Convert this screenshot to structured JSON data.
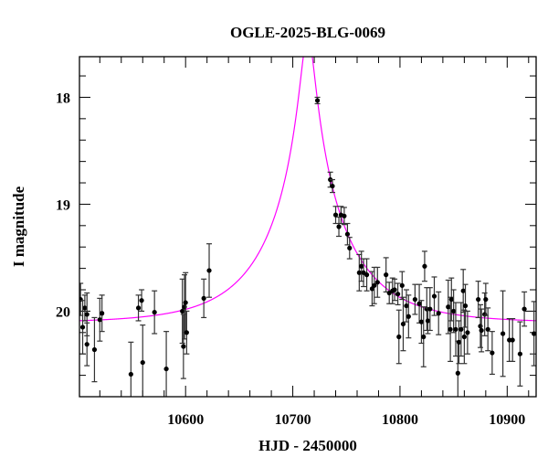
{
  "chart_data": {
    "type": "scatter",
    "title": "OGLE-2025-BLG-0069",
    "xlabel": "HJD - 2450000",
    "ylabel": "I magnitude",
    "xlim": [
      10501,
      10927
    ],
    "ylim": [
      20.8,
      17.62
    ],
    "y_inverted": true,
    "grid": false,
    "x_ticks": [
      10600,
      10700,
      10800,
      10900
    ],
    "x_tick_labels": [
      "10600",
      "10700",
      "10800",
      "10900"
    ],
    "y_ticks": [
      18,
      19,
      20
    ],
    "y_tick_labels": [
      "18",
      "19",
      "20"
    ],
    "colors": {
      "points": "#000000",
      "errorbars": "#333333",
      "model": "#ff00ff"
    },
    "model": {
      "type": "point-lens",
      "t0": 10714,
      "tE": 74,
      "u0": 0.084,
      "baseline_mag": 20.11
    },
    "points": [
      {
        "x": 10502,
        "y": 19.89,
        "err": 0.15
      },
      {
        "x": 10506,
        "y": 19.97,
        "err": 0.12
      },
      {
        "x": 10508,
        "y": 20.03,
        "err": 0.2
      },
      {
        "x": 10504,
        "y": 20.15,
        "err": 0.25
      },
      {
        "x": 10508,
        "y": 20.31,
        "err": 0.2
      },
      {
        "x": 10515,
        "y": 20.36,
        "err": 0.3
      },
      {
        "x": 10520,
        "y": 20.08,
        "err": 0.2
      },
      {
        "x": 10522,
        "y": 20.02,
        "err": 0.17
      },
      {
        "x": 10549,
        "y": 20.59,
        "err": 0.3
      },
      {
        "x": 10556,
        "y": 19.97,
        "err": 0.12
      },
      {
        "x": 10559,
        "y": 19.9,
        "err": 0.1
      },
      {
        "x": 10560,
        "y": 20.48,
        "err": 0.35
      },
      {
        "x": 10571,
        "y": 20.01,
        "err": 0.2
      },
      {
        "x": 10582,
        "y": 20.54,
        "err": 0.35
      },
      {
        "x": 10597,
        "y": 20.0,
        "err": 0.3
      },
      {
        "x": 10599,
        "y": 19.96,
        "err": 0.3
      },
      {
        "x": 10600,
        "y": 19.92,
        "err": 0.28
      },
      {
        "x": 10598,
        "y": 20.33,
        "err": 0.3
      },
      {
        "x": 10601,
        "y": 20.2,
        "err": 0.2
      },
      {
        "x": 10617,
        "y": 19.88,
        "err": 0.18
      },
      {
        "x": 10622,
        "y": 19.62,
        "err": 0.25
      },
      {
        "x": 10723,
        "y": 18.03,
        "err": 0.03
      },
      {
        "x": 10735,
        "y": 18.77,
        "err": 0.07
      },
      {
        "x": 10737,
        "y": 18.83,
        "err": 0.06
      },
      {
        "x": 10740,
        "y": 19.1,
        "err": 0.08
      },
      {
        "x": 10743,
        "y": 19.21,
        "err": 0.09
      },
      {
        "x": 10745,
        "y": 19.1,
        "err": 0.08
      },
      {
        "x": 10748,
        "y": 19.11,
        "err": 0.08
      },
      {
        "x": 10751,
        "y": 19.28,
        "err": 0.1
      },
      {
        "x": 10753,
        "y": 19.41,
        "err": 0.1
      },
      {
        "x": 10762,
        "y": 19.64,
        "err": 0.17
      },
      {
        "x": 10764,
        "y": 19.58,
        "err": 0.14
      },
      {
        "x": 10766,
        "y": 19.64,
        "err": 0.13
      },
      {
        "x": 10769,
        "y": 19.66,
        "err": 0.15
      },
      {
        "x": 10774,
        "y": 19.79,
        "err": 0.16
      },
      {
        "x": 10776,
        "y": 19.76,
        "err": 0.17
      },
      {
        "x": 10779,
        "y": 19.73,
        "err": 0.14
      },
      {
        "x": 10787,
        "y": 19.66,
        "err": 0.16
      },
      {
        "x": 10790,
        "y": 19.83,
        "err": 0.1
      },
      {
        "x": 10793,
        "y": 19.81,
        "err": 0.12
      },
      {
        "x": 10795,
        "y": 19.8,
        "err": 0.1
      },
      {
        "x": 10798,
        "y": 19.84,
        "err": 0.1
      },
      {
        "x": 10799,
        "y": 20.24,
        "err": 0.25
      },
      {
        "x": 10802,
        "y": 19.76,
        "err": 0.13
      },
      {
        "x": 10803,
        "y": 20.12,
        "err": 0.25
      },
      {
        "x": 10806,
        "y": 19.95,
        "err": 0.15
      },
      {
        "x": 10808,
        "y": 20.05,
        "err": 0.2
      },
      {
        "x": 10814,
        "y": 19.89,
        "err": 0.14
      },
      {
        "x": 10818,
        "y": 19.93,
        "err": 0.18
      },
      {
        "x": 10820,
        "y": 20.1,
        "err": 0.2
      },
      {
        "x": 10822,
        "y": 20.24,
        "err": 0.28
      },
      {
        "x": 10823,
        "y": 19.58,
        "err": 0.14
      },
      {
        "x": 10825,
        "y": 19.98,
        "err": 0.2
      },
      {
        "x": 10826,
        "y": 20.09,
        "err": 0.12
      },
      {
        "x": 10828,
        "y": 19.98,
        "err": 0.2
      },
      {
        "x": 10832,
        "y": 19.86,
        "err": 0.18
      },
      {
        "x": 10836,
        "y": 20.02,
        "err": 0.2
      },
      {
        "x": 10845,
        "y": 19.96,
        "err": 0.25
      },
      {
        "x": 10847,
        "y": 20.17,
        "err": 0.3
      },
      {
        "x": 10848,
        "y": 19.89,
        "err": 0.2
      },
      {
        "x": 10850,
        "y": 20.0,
        "err": 0.2
      },
      {
        "x": 10852,
        "y": 20.17,
        "err": 0.25
      },
      {
        "x": 10854,
        "y": 20.58,
        "err": 0.3
      },
      {
        "x": 10855,
        "y": 20.29,
        "err": 0.2
      },
      {
        "x": 10857,
        "y": 20.17,
        "err": 0.25
      },
      {
        "x": 10859,
        "y": 19.81,
        "err": 0.2
      },
      {
        "x": 10860,
        "y": 20.24,
        "err": 0.25
      },
      {
        "x": 10861,
        "y": 19.95,
        "err": 0.2
      },
      {
        "x": 10863,
        "y": 20.2,
        "err": 0.2
      },
      {
        "x": 10873,
        "y": 19.89,
        "err": 0.17
      },
      {
        "x": 10875,
        "y": 20.14,
        "err": 0.2
      },
      {
        "x": 10876,
        "y": 20.18,
        "err": 0.2
      },
      {
        "x": 10879,
        "y": 20.03,
        "err": 0.2
      },
      {
        "x": 10880,
        "y": 19.89,
        "err": 0.15
      },
      {
        "x": 10882,
        "y": 20.17,
        "err": 0.2
      },
      {
        "x": 10886,
        "y": 20.39,
        "err": 0.2
      },
      {
        "x": 10896,
        "y": 20.21,
        "err": 0.4
      },
      {
        "x": 10902,
        "y": 20.27,
        "err": 0.2
      },
      {
        "x": 10905,
        "y": 20.27,
        "err": 0.2
      },
      {
        "x": 10912,
        "y": 20.4,
        "err": 0.3
      },
      {
        "x": 10916,
        "y": 19.98,
        "err": 0.16
      },
      {
        "x": 10925,
        "y": 20.21,
        "err": 0.3
      }
    ]
  }
}
